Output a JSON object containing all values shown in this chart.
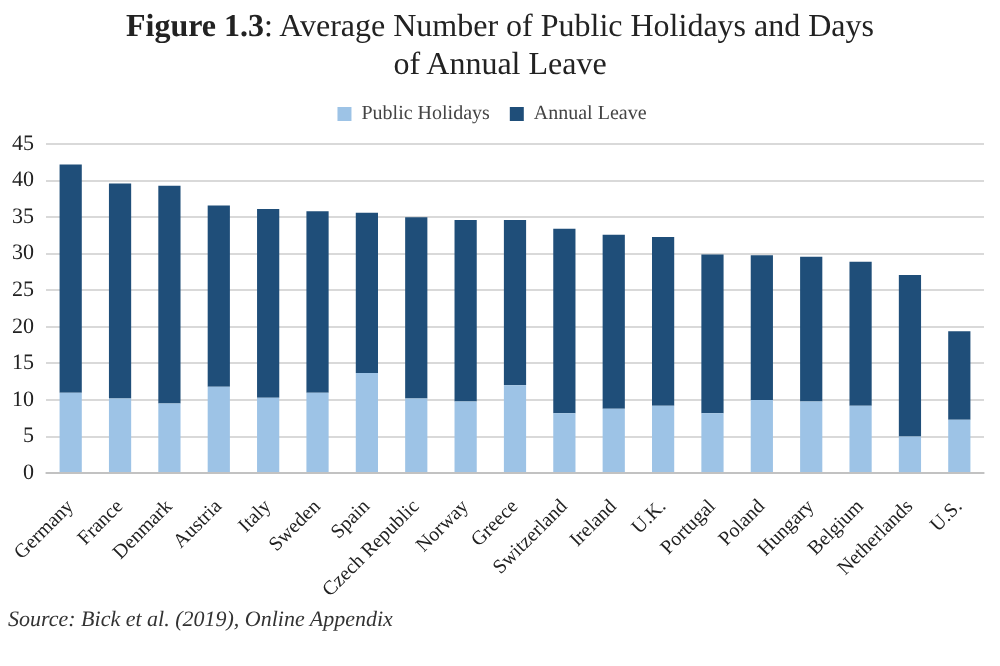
{
  "chart_data": {
    "type": "bar",
    "title": "Figure 1.3: Average Number of Public Holidays and Days of Annual Leave",
    "categories": [
      "Germany",
      "France",
      "Denmark",
      "Austria",
      "Italy",
      "Sweden",
      "Spain",
      "Czech Republic",
      "Norway",
      "Greece",
      "Switzerland",
      "Ireland",
      "U.K.",
      "Portugal",
      "Poland",
      "Hungary",
      "Belgium",
      "Netherlands",
      "U.S."
    ],
    "series": [
      {
        "name": "Public Holidays",
        "color": "#9dc3e6",
        "values": [
          11,
          10.2,
          9.5,
          11.8,
          10.3,
          11,
          13.7,
          10.2,
          9.8,
          12,
          8.2,
          8.8,
          9.2,
          8.2,
          10,
          9.8,
          9.2,
          5,
          7.3
        ]
      },
      {
        "name": "Annual Leave",
        "color": "#1f4e79",
        "values": [
          31.2,
          29.4,
          29.8,
          24.8,
          25.8,
          24.8,
          21.9,
          24.8,
          24.8,
          22.6,
          25.2,
          23.8,
          23.1,
          21.7,
          19.8,
          19.8,
          19.7,
          22.1,
          12.1
        ]
      }
    ],
    "stacked": true,
    "ylim": [
      0,
      45
    ],
    "yticks": [
      0,
      5,
      10,
      15,
      20,
      25,
      30,
      35,
      40,
      45
    ],
    "grid": "y",
    "legend": "top",
    "annotations": [
      "Source: Bick et al. (2019), Online Appendix"
    ]
  }
}
